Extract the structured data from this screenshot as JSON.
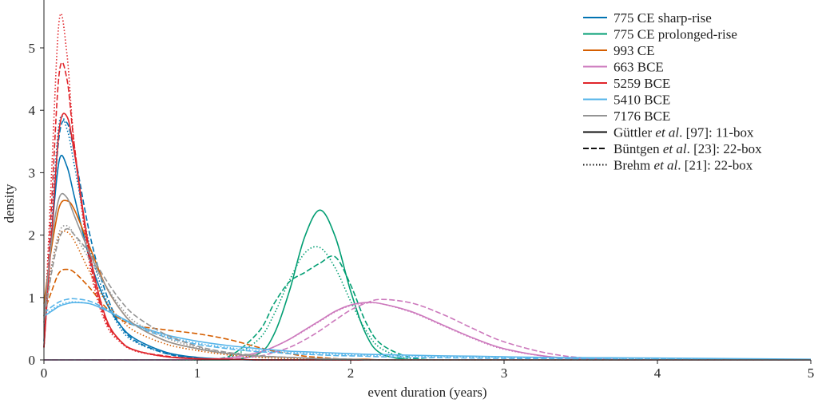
{
  "chart_data": {
    "type": "line",
    "xlabel": "event duration (years)",
    "ylabel": "density",
    "xlim": [
      0,
      5
    ],
    "ylim": [
      0,
      5.75
    ],
    "xticks": [
      "0",
      "1",
      "2",
      "3",
      "4",
      "5"
    ],
    "yticks": [
      "0",
      "1",
      "2",
      "3",
      "4",
      "5"
    ],
    "grid": false,
    "legend_placement": "top-right",
    "x": [
      0,
      0.05,
      0.1,
      0.15,
      0.2,
      0.3,
      0.4,
      0.5,
      0.6,
      0.8,
      1.0,
      1.2,
      1.4,
      1.5,
      1.6,
      1.7,
      1.8,
      1.9,
      2.0,
      2.1,
      2.2,
      2.4,
      2.6,
      2.8,
      3.0,
      3.3,
      3.6,
      4.0,
      4.5,
      5.0
    ],
    "events": [
      {
        "name": "775 CE sharp-rise",
        "color": "#0173b2"
      },
      {
        "name": "775 CE prolonged-rise",
        "color": "#029e73"
      },
      {
        "name": "993 CE",
        "color": "#d55e00"
      },
      {
        "name": "663 BCE",
        "color": "#cc78bc"
      },
      {
        "name": "5259 BCE",
        "color": "#e0252b"
      },
      {
        "name": "5410 BCE",
        "color": "#56b4e9"
      },
      {
        "name": "7176 BCE",
        "color": "#949494"
      }
    ],
    "models": [
      {
        "style": "solid",
        "author": "Güttler",
        "etal": " et al",
        "suffix": ". [97]: 11-box"
      },
      {
        "style": "dashed",
        "author": "Büntgen",
        "etal": " et al",
        "suffix": ". [23]: 22-box"
      },
      {
        "style": "dotted",
        "author": "Brehm",
        "etal": " et al",
        "suffix": ". [21]: 22-box"
      }
    ],
    "series": [
      {
        "event": 0,
        "model": 0,
        "values": [
          0.3,
          2.0,
          3.2,
          3.1,
          2.6,
          1.6,
          0.95,
          0.55,
          0.33,
          0.12,
          0.04,
          0.01,
          0,
          0,
          0,
          0,
          0,
          0,
          0,
          0,
          0,
          0,
          0,
          0,
          0,
          0,
          0,
          0,
          0,
          0
        ]
      },
      {
        "event": 0,
        "model": 1,
        "values": [
          0.2,
          2.0,
          3.6,
          3.8,
          3.3,
          2.0,
          1.1,
          0.55,
          0.3,
          0.1,
          0.03,
          0.01,
          0,
          0,
          0,
          0,
          0,
          0,
          0,
          0,
          0,
          0,
          0,
          0,
          0,
          0,
          0,
          0,
          0,
          0
        ]
      },
      {
        "event": 0,
        "model": 2,
        "values": [
          0.2,
          2.2,
          3.8,
          3.7,
          3.1,
          1.8,
          1.0,
          0.5,
          0.28,
          0.1,
          0.03,
          0.01,
          0,
          0,
          0,
          0,
          0,
          0,
          0,
          0,
          0,
          0,
          0,
          0,
          0,
          0,
          0,
          0,
          0,
          0
        ]
      },
      {
        "event": 1,
        "model": 0,
        "values": [
          0,
          0,
          0,
          0,
          0,
          0,
          0,
          0,
          0,
          0,
          0,
          0,
          0.1,
          0.41,
          1.1,
          1.97,
          2.4,
          1.97,
          1.1,
          0.41,
          0.1,
          0,
          0,
          0,
          0,
          0,
          0,
          0,
          0,
          0
        ]
      },
      {
        "event": 1,
        "model": 1,
        "values": [
          0,
          0,
          0,
          0,
          0,
          0,
          0,
          0,
          0,
          0,
          0.01,
          0.05,
          0.45,
          0.9,
          1.25,
          1.4,
          1.55,
          1.65,
          1.2,
          0.6,
          0.25,
          0.03,
          0,
          0,
          0,
          0,
          0,
          0,
          0,
          0
        ]
      },
      {
        "event": 1,
        "model": 2,
        "values": [
          0,
          0,
          0,
          0,
          0,
          0,
          0,
          0,
          0,
          0,
          0,
          0.03,
          0.33,
          0.73,
          1.27,
          1.71,
          1.8,
          1.47,
          0.94,
          0.47,
          0.18,
          0.01,
          0,
          0,
          0,
          0,
          0,
          0,
          0,
          0
        ]
      },
      {
        "event": 2,
        "model": 0,
        "values": [
          0.9,
          1.8,
          2.45,
          2.55,
          2.4,
          1.8,
          1.2,
          0.8,
          0.55,
          0.3,
          0.18,
          0.1,
          0.06,
          0.05,
          0.04,
          0.03,
          0.02,
          0.015,
          0.01,
          0.01,
          0,
          0,
          0,
          0,
          0,
          0,
          0,
          0,
          0,
          0
        ]
      },
      {
        "event": 2,
        "model": 1,
        "values": [
          0.75,
          1.1,
          1.4,
          1.45,
          1.4,
          1.15,
          0.85,
          0.65,
          0.55,
          0.48,
          0.42,
          0.33,
          0.2,
          0.14,
          0.1,
          0.06,
          0.04,
          0.02,
          0.01,
          0,
          0,
          0,
          0,
          0,
          0,
          0,
          0,
          0,
          0,
          0
        ]
      },
      {
        "event": 2,
        "model": 2,
        "values": [
          0.7,
          1.5,
          2.0,
          2.05,
          1.9,
          1.4,
          0.95,
          0.65,
          0.45,
          0.25,
          0.15,
          0.08,
          0.04,
          0.03,
          0.02,
          0.015,
          0.01,
          0,
          0,
          0,
          0,
          0,
          0,
          0,
          0,
          0,
          0,
          0,
          0,
          0
        ]
      },
      {
        "event": 3,
        "model": 0,
        "values": [
          0,
          0,
          0,
          0,
          0,
          0,
          0,
          0,
          0,
          0,
          0.01,
          0.03,
          0.12,
          0.21,
          0.33,
          0.48,
          0.63,
          0.78,
          0.88,
          0.92,
          0.9,
          0.77,
          0.56,
          0.35,
          0.18,
          0.05,
          0.01,
          0,
          0,
          0
        ]
      },
      {
        "event": 3,
        "model": 1,
        "values": [
          0,
          0,
          0,
          0,
          0,
          0,
          0,
          0,
          0,
          0,
          0,
          0.014,
          0.06,
          0.12,
          0.2,
          0.32,
          0.47,
          0.64,
          0.8,
          0.91,
          0.97,
          0.91,
          0.73,
          0.5,
          0.29,
          0.1,
          0.02,
          0,
          0,
          0
        ]
      },
      {
        "event": 3,
        "model": 2,
        "values": [
          0,
          0,
          0,
          0,
          0,
          0,
          0,
          0,
          0,
          0,
          0.01,
          0.03,
          0.12,
          0.21,
          0.33,
          0.47,
          0.62,
          0.77,
          0.87,
          0.91,
          0.9,
          0.76,
          0.55,
          0.34,
          0.17,
          0.05,
          0.01,
          0,
          0,
          0
        ]
      },
      {
        "event": 4,
        "model": 0,
        "values": [
          0.2,
          2.0,
          3.7,
          3.9,
          3.3,
          1.7,
          0.7,
          0.3,
          0.15,
          0.05,
          0.02,
          0.01,
          0,
          0,
          0,
          0,
          0,
          0,
          0,
          0,
          0,
          0,
          0,
          0,
          0,
          0,
          0,
          0,
          0,
          0
        ]
      },
      {
        "event": 4,
        "model": 1,
        "values": [
          0.2,
          2.5,
          4.6,
          4.5,
          3.4,
          1.6,
          0.65,
          0.3,
          0.15,
          0.06,
          0.02,
          0.01,
          0,
          0,
          0,
          0,
          0,
          0,
          0,
          0,
          0,
          0,
          0,
          0,
          0,
          0,
          0,
          0,
          0,
          0
        ]
      },
      {
        "event": 4,
        "model": 2,
        "values": [
          0.2,
          3.0,
          5.45,
          4.9,
          3.4,
          1.5,
          0.6,
          0.28,
          0.14,
          0.05,
          0.02,
          0.01,
          0,
          0,
          0,
          0,
          0,
          0,
          0,
          0,
          0,
          0,
          0,
          0,
          0,
          0,
          0,
          0,
          0,
          0
        ]
      },
      {
        "event": 5,
        "model": 0,
        "values": [
          0.7,
          0.78,
          0.86,
          0.9,
          0.92,
          0.9,
          0.8,
          0.68,
          0.56,
          0.4,
          0.3,
          0.23,
          0.18,
          0.16,
          0.14,
          0.13,
          0.12,
          0.11,
          0.1,
          0.09,
          0.085,
          0.075,
          0.065,
          0.06,
          0.05,
          0.04,
          0.035,
          0.03,
          0.02,
          0.01
        ]
      },
      {
        "event": 5,
        "model": 1,
        "values": [
          0.75,
          0.85,
          0.93,
          0.97,
          0.98,
          0.94,
          0.82,
          0.68,
          0.54,
          0.36,
          0.25,
          0.18,
          0.13,
          0.12,
          0.1,
          0.09,
          0.08,
          0.07,
          0.065,
          0.06,
          0.05,
          0.04,
          0.035,
          0.03,
          0.025,
          0.02,
          0.015,
          0.01,
          0.005,
          0
        ]
      },
      {
        "event": 5,
        "model": 2,
        "values": [
          0.7,
          0.8,
          0.88,
          0.92,
          0.93,
          0.9,
          0.8,
          0.67,
          0.55,
          0.38,
          0.27,
          0.2,
          0.15,
          0.13,
          0.12,
          0.11,
          0.1,
          0.09,
          0.08,
          0.075,
          0.07,
          0.06,
          0.05,
          0.045,
          0.04,
          0.03,
          0.025,
          0.02,
          0.01,
          0.005
        ]
      },
      {
        "event": 6,
        "model": 0,
        "values": [
          0.7,
          1.9,
          2.6,
          2.6,
          2.3,
          1.7,
          1.2,
          0.8,
          0.55,
          0.3,
          0.18,
          0.1,
          0.06,
          0.05,
          0.04,
          0.03,
          0.02,
          0.015,
          0.01,
          0,
          0,
          0,
          0,
          0,
          0,
          0,
          0,
          0,
          0,
          0
        ]
      },
      {
        "event": 6,
        "model": 1,
        "values": [
          0.6,
          1.4,
          1.95,
          2.1,
          2.0,
          1.7,
          1.3,
          0.95,
          0.7,
          0.4,
          0.22,
          0.12,
          0.07,
          0.05,
          0.04,
          0.03,
          0.02,
          0.015,
          0.01,
          0,
          0,
          0,
          0,
          0,
          0,
          0,
          0,
          0,
          0,
          0
        ]
      },
      {
        "event": 6,
        "model": 2,
        "values": [
          0.6,
          1.5,
          2.05,
          2.15,
          2.0,
          1.6,
          1.2,
          0.85,
          0.6,
          0.35,
          0.2,
          0.11,
          0.06,
          0.05,
          0.04,
          0.03,
          0.02,
          0.015,
          0.01,
          0,
          0,
          0,
          0,
          0,
          0,
          0,
          0,
          0,
          0,
          0
        ]
      }
    ]
  }
}
